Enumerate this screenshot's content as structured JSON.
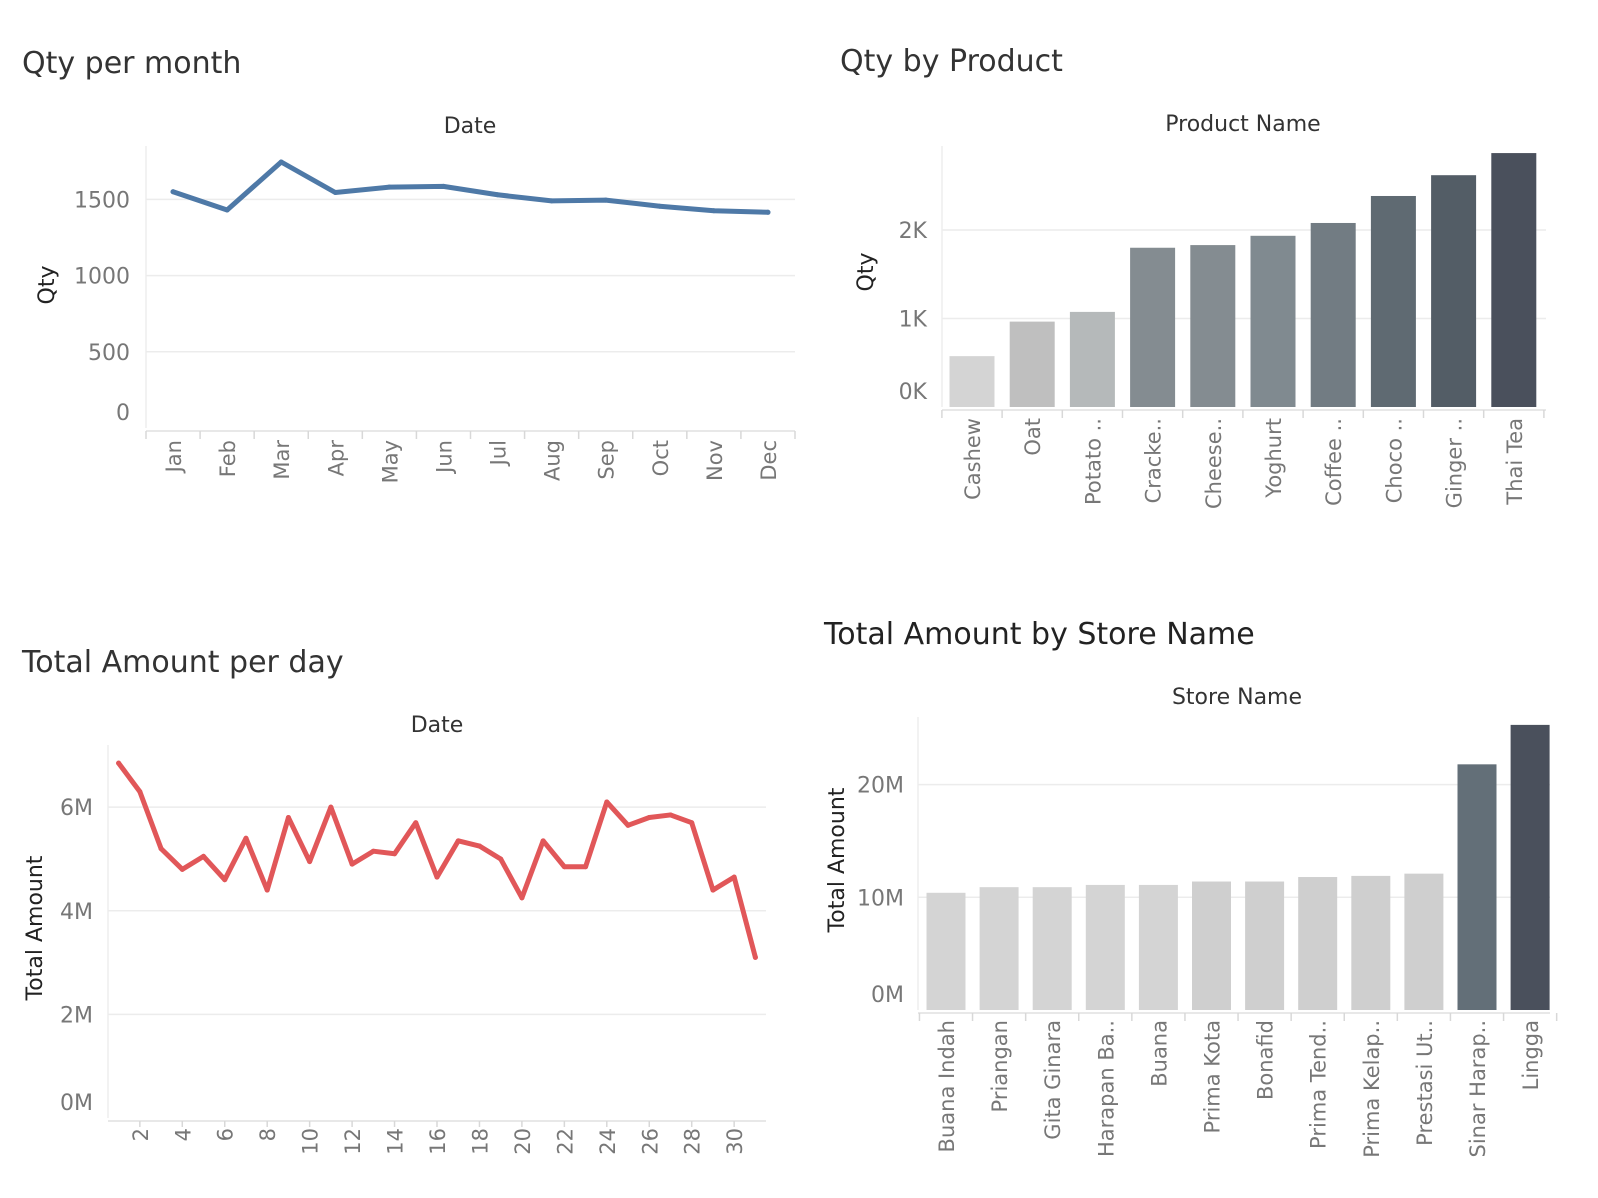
{
  "chart_data": [
    {
      "id": "qty-per-month",
      "type": "line",
      "title": "Qty per month",
      "xlabel": "Date",
      "ylabel": "Qty",
      "categories": [
        "Jan",
        "Feb",
        "Mar",
        "Apr",
        "May",
        "Jun",
        "Jul",
        "Aug",
        "Sep",
        "Oct",
        "Nov",
        "Dec"
      ],
      "values": [
        1550,
        1430,
        1745,
        1545,
        1580,
        1585,
        1530,
        1490,
        1495,
        1455,
        1425,
        1415
      ],
      "ylim": [
        0,
        1850
      ],
      "yticks": [
        0,
        500,
        1000,
        1500
      ],
      "ytick_labels": [
        "0",
        "500",
        "1000",
        "1500"
      ],
      "color": "#4e79a7",
      "grid": true
    },
    {
      "id": "qty-by-product",
      "type": "bar",
      "title": "Qty by Product",
      "xlabel": "Product Name",
      "ylabel": "Qty",
      "categories": [
        "Cashew",
        "Oat",
        "Potato ..",
        "Cracke..",
        "Cheese..",
        "Yoghurt",
        "Coffee ..",
        "Choco ..",
        "Ginger ..",
        "Thai Tea"
      ],
      "values": [
        575,
        965,
        1075,
        1800,
        1830,
        1935,
        2080,
        2385,
        2620,
        2870
      ],
      "colors": [
        "#d4d4d4",
        "#bfbfbf",
        "#b5b9ba",
        "#848c91",
        "#848c91",
        "#808a90",
        "#727c83",
        "#5f6a72",
        "#535d66",
        "#4a505c"
      ],
      "ylim": [
        0,
        2950
      ],
      "yticks": [
        0,
        1000,
        2000
      ],
      "ytick_labels": [
        "0K",
        "1K",
        "2K"
      ],
      "grid": true
    },
    {
      "id": "total-amount-per-day",
      "type": "line",
      "title": "Total Amount per day",
      "xlabel": "Date",
      "ylabel": "Total Amount",
      "x": [
        1,
        2,
        3,
        4,
        5,
        6,
        7,
        8,
        9,
        10,
        11,
        12,
        13,
        14,
        15,
        16,
        17,
        18,
        19,
        20,
        21,
        22,
        23,
        24,
        25,
        26,
        27,
        28,
        29,
        30,
        31
      ],
      "values": [
        6.85,
        6.3,
        5.2,
        4.8,
        5.05,
        4.6,
        5.4,
        4.4,
        5.8,
        4.95,
        6.0,
        4.9,
        5.15,
        5.1,
        5.7,
        4.65,
        5.35,
        5.25,
        5.0,
        4.25,
        5.35,
        4.85,
        4.85,
        6.1,
        5.65,
        5.8,
        5.85,
        5.7,
        4.4,
        4.65,
        3.1
      ],
      "unit": "M",
      "ylim": [
        0,
        7.2
      ],
      "yticks": [
        0,
        2,
        4,
        6
      ],
      "ytick_labels": [
        "0M",
        "2M",
        "4M",
        "6M"
      ],
      "xticks": [
        2,
        4,
        6,
        8,
        10,
        12,
        14,
        16,
        18,
        20,
        22,
        24,
        26,
        28,
        30
      ],
      "xtick_labels": [
        "2",
        "4",
        "6",
        "8",
        "10",
        "12",
        "14",
        "16",
        "18",
        "20",
        "22",
        "24",
        "26",
        "28",
        "30"
      ],
      "color": "#e15759",
      "grid": true
    },
    {
      "id": "total-amount-by-store",
      "type": "bar",
      "title": "Total Amount by Store Name",
      "xlabel": "Store Name",
      "ylabel": "Total Amount",
      "categories": [
        "Buana Indah",
        "Priangan",
        "Gita Ginara",
        "Harapan Ba..",
        "Buana",
        "Prima Kota",
        "Bonafid",
        "Prima Tend..",
        "Prima Kelap..",
        "Prestasi Ut..",
        "Sinar Harap..",
        "Lingga"
      ],
      "values": [
        10.4,
        10.9,
        10.9,
        11.1,
        11.1,
        11.4,
        11.4,
        11.8,
        11.9,
        12.1,
        21.8,
        25.3
      ],
      "unit": "M",
      "colors": [
        "#d4d4d4",
        "#d4d4d4",
        "#d4d4d4",
        "#d4d4d4",
        "#d4d4d4",
        "#cfcfcf",
        "#cfcfcf",
        "#cfcfcf",
        "#cfcfcf",
        "#cfcfcf",
        "#636f78",
        "#4a505c"
      ],
      "ylim": [
        0,
        26
      ],
      "yticks": [
        0,
        10,
        20
      ],
      "ytick_labels": [
        "0M",
        "10M",
        "20M"
      ],
      "grid": true
    }
  ]
}
